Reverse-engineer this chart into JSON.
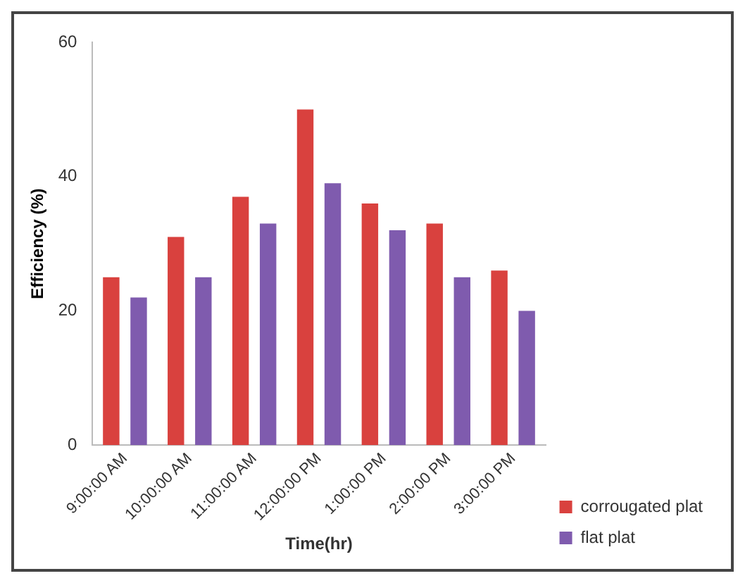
{
  "chart_data": {
    "type": "bar",
    "xlabel": "Time(hr)",
    "ylabel": "Efficiency (%)",
    "categories": [
      "9:00:00 AM",
      "10:00:00 AM",
      "11:00:00 AM",
      "12:00:00 PM",
      "1:00:00 PM",
      "2:00:00 PM",
      "3:00:00 PM"
    ],
    "series": [
      {
        "name": "corrougated plat",
        "color": "#d9413e",
        "values": [
          25,
          31,
          37,
          50,
          36,
          33,
          26
        ]
      },
      {
        "name": "flat plat",
        "color": "#7f5bae",
        "values": [
          22,
          25,
          33,
          39,
          32,
          25,
          20
        ]
      }
    ],
    "ylim": [
      0,
      60
    ],
    "yticks": [
      0,
      20,
      40,
      60
    ],
    "grid": false,
    "legend": "bottom right"
  }
}
